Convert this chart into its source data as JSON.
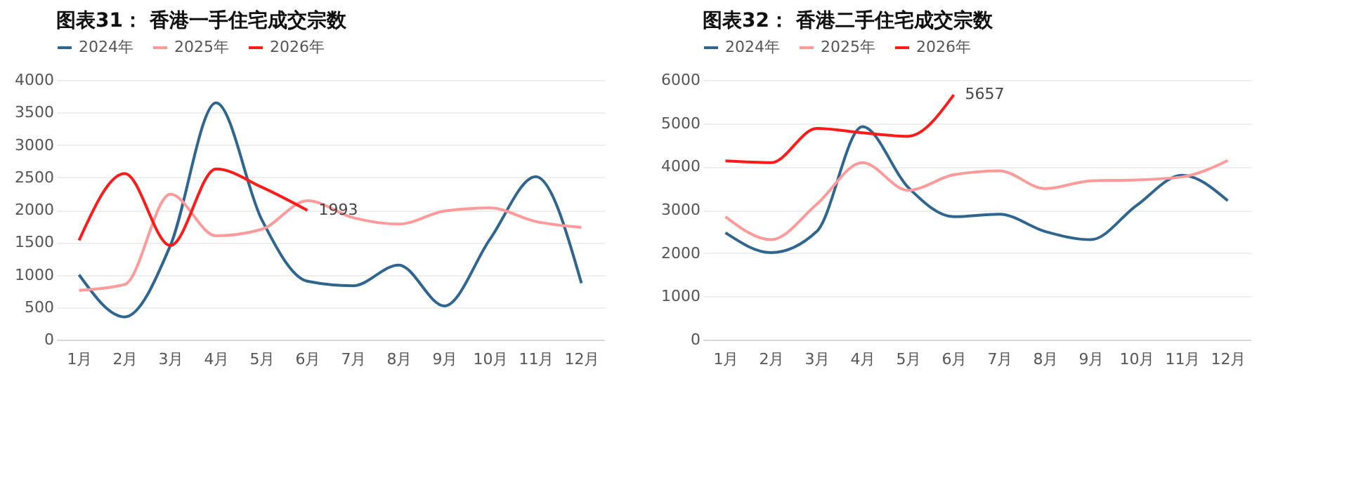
{
  "chart_data": [
    {
      "type": "line",
      "title": "图表31： 香港一手住宅成交宗数",
      "categories": [
        "1月",
        "2月",
        "3月",
        "4月",
        "5月",
        "6月",
        "7月",
        "8月",
        "9月",
        "10月",
        "11月",
        "12月"
      ],
      "series": [
        {
          "name": "2024年",
          "color": "#2f6690",
          "values": [
            1000,
            350,
            1450,
            3650,
            1850,
            900,
            830,
            1150,
            520,
            1550,
            2510,
            870
          ]
        },
        {
          "name": "2025年",
          "color": "#ff9a9a",
          "values": [
            760,
            850,
            2240,
            1600,
            1700,
            2140,
            1880,
            1780,
            1980,
            2030,
            1820,
            1730
          ]
        },
        {
          "name": "2026年",
          "color": "#ff1a1a",
          "values": [
            1530,
            2560,
            1450,
            2630,
            2350,
            1993,
            null,
            null,
            null,
            null,
            null,
            null
          ],
          "value_labels": [
            null,
            null,
            null,
            null,
            null,
            "1993",
            null,
            null,
            null,
            null,
            null,
            null
          ]
        }
      ],
      "ylim": [
        0,
        4000
      ],
      "yticks": [
        0,
        500,
        1000,
        1500,
        2000,
        2500,
        3000,
        3500,
        4000
      ],
      "grid": "y",
      "legend": "top",
      "marker": "none",
      "line_style": "solid"
    },
    {
      "type": "line",
      "title": "图表32： 香港二手住宅成交宗数",
      "categories": [
        "1月",
        "2月",
        "3月",
        "4月",
        "5月",
        "6月",
        "7月",
        "8月",
        "9月",
        "10月",
        "11月",
        "12月"
      ],
      "series": [
        {
          "name": "2024年",
          "color": "#2f6690",
          "values": [
            2470,
            2010,
            2500,
            4920,
            3520,
            2840,
            2900,
            2500,
            2310,
            3100,
            3800,
            3210
          ]
        },
        {
          "name": "2025年",
          "color": "#ff9a9a",
          "values": [
            2840,
            2310,
            3130,
            4090,
            3450,
            3810,
            3900,
            3490,
            3670,
            3690,
            3760,
            4140
          ]
        },
        {
          "name": "2026年",
          "color": "#ff1a1a",
          "values": [
            4130,
            4090,
            4880,
            4780,
            4700,
            5657,
            null,
            null,
            null,
            null,
            null,
            null
          ],
          "value_labels": [
            null,
            null,
            null,
            null,
            null,
            "5657",
            null,
            null,
            null,
            null,
            null,
            null
          ]
        }
      ],
      "ylim": [
        0,
        6000
      ],
      "yticks": [
        0,
        1000,
        2000,
        3000,
        4000,
        5000,
        6000
      ],
      "grid": "y",
      "legend": "top",
      "marker": "none",
      "line_style": "solid"
    }
  ]
}
